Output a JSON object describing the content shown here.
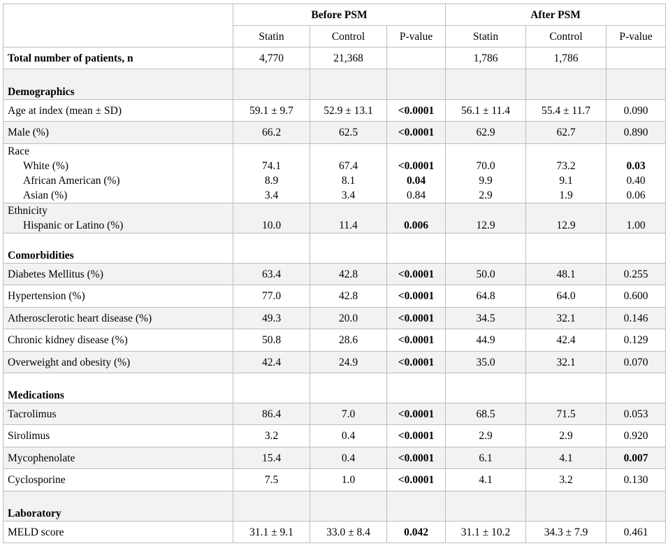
{
  "table": {
    "group_headers": [
      "Before PSM",
      "After PSM"
    ],
    "sub_headers": [
      "Statin",
      "Control",
      "P-value",
      "Statin",
      "Control",
      "P-value"
    ],
    "total_row": {
      "label": "Total number of patients, n",
      "values": [
        "4,770",
        "21,368",
        "",
        "1,786",
        "1,786",
        ""
      ]
    },
    "sections": {
      "demographics": "Demographics",
      "comorbidities": "Comorbidities",
      "medications": "Medications",
      "laboratory": "Laboratory"
    },
    "rows": {
      "age": {
        "label": "Age at index (mean ± SD)",
        "values": [
          "59.1 ± 9.7",
          "52.9 ± 13.1",
          "<0.0001",
          "56.1 ± 11.4",
          "55.4 ± 11.7",
          "0.090"
        ]
      },
      "male": {
        "label": "Male (%)",
        "values": [
          "66.2",
          "62.5",
          "<0.0001",
          "62.9",
          "62.7",
          "0.890"
        ]
      },
      "race": {
        "label": "Race",
        "sub": [
          {
            "label": "White (%)",
            "values": [
              "74.1",
              "67.4",
              "<0.0001",
              "70.0",
              "73.2",
              "0.03"
            ]
          },
          {
            "label": "African American (%)",
            "values": [
              "8.9",
              "8.1",
              "0.04",
              "9.9",
              "9.1",
              "0.40"
            ]
          },
          {
            "label": "Asian (%)",
            "values": [
              "3.4",
              "3.4",
              "0.84",
              "2.9",
              "1.9",
              "0.06"
            ]
          }
        ]
      },
      "ethnicity": {
        "label": "Ethnicity",
        "sub": [
          {
            "label": "Hispanic or Latino (%)",
            "values": [
              "10.0",
              "11.4",
              "0.006",
              "12.9",
              "12.9",
              "1.00"
            ]
          }
        ]
      },
      "diabetes": {
        "label": "Diabetes Mellitus (%)",
        "values": [
          "63.4",
          "42.8",
          "<0.0001",
          "50.0",
          "48.1",
          "0.255"
        ]
      },
      "hypertension": {
        "label": "Hypertension (%)",
        "values": [
          "77.0",
          "42.8",
          "<0.0001",
          "64.8",
          "64.0",
          "0.600"
        ]
      },
      "ashd": {
        "label": "Atherosclerotic heart disease (%)",
        "values": [
          "49.3",
          "20.0",
          "<0.0001",
          "34.5",
          "32.1",
          "0.146"
        ]
      },
      "ckd": {
        "label": "Chronic kidney disease (%)",
        "values": [
          "50.8",
          "28.6",
          "<0.0001",
          "44.9",
          "42.4",
          "0.129"
        ]
      },
      "obesity": {
        "label": "Overweight and obesity (%)",
        "values": [
          "42.4",
          "24.9",
          "<0.0001",
          "35.0",
          "32.1",
          "0.070"
        ]
      },
      "tacrolimus": {
        "label": "Tacrolimus",
        "values": [
          "86.4",
          "7.0",
          "<0.0001",
          "68.5",
          "71.5",
          "0.053"
        ]
      },
      "sirolimus": {
        "label": "Sirolimus",
        "values": [
          "3.2",
          "0.4",
          "<0.0001",
          "2.9",
          "2.9",
          "0.920"
        ]
      },
      "mycophenolate": {
        "label": "Mycophenolate",
        "values": [
          "15.4",
          "0.4",
          "<0.0001",
          "6.1",
          "4.1",
          "0.007"
        ]
      },
      "cyclosporine": {
        "label": "Cyclosporine",
        "values": [
          "7.5",
          "1.0",
          "<0.0001",
          "4.1",
          "3.2",
          "0.130"
        ]
      },
      "meld": {
        "label": "MELD score",
        "values": [
          "31.1 ± 9.1",
          "33.0 ± 8.4",
          "0.042",
          "31.1 ± 10.2",
          "34.3 ± 7.9",
          "0.461"
        ]
      }
    }
  }
}
